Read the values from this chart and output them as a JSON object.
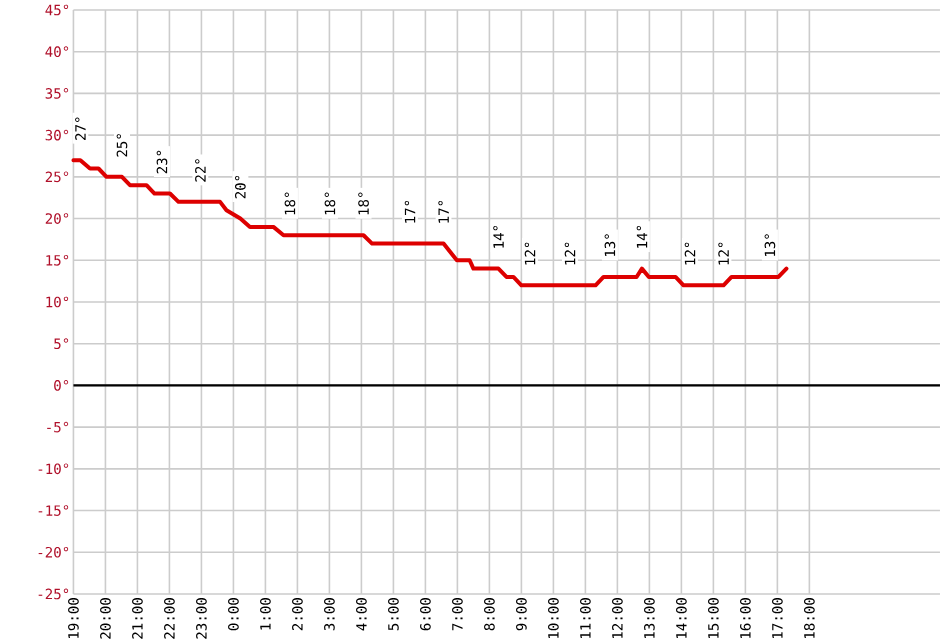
{
  "chart_data": {
    "type": "line",
    "xlim": [
      "2000-01-01T19:00",
      "2000-01-02T22:05"
    ],
    "ylim": [
      -25,
      45
    ],
    "xticks": [
      {
        "value": "2000-01-01T19:00",
        "label": "19:00"
      },
      {
        "value": "2000-01-01T20:00",
        "label": "20:00"
      },
      {
        "value": "2000-01-01T21:00",
        "label": "21:00"
      },
      {
        "value": "2000-01-01T22:00",
        "label": "22:00"
      },
      {
        "value": "2000-01-01T23:00",
        "label": "23:00"
      },
      {
        "value": "2000-01-02T00:00",
        "label": "0:00"
      },
      {
        "value": "2000-01-02T01:00",
        "label": "1:00"
      },
      {
        "value": "2000-01-02T02:00",
        "label": "2:00"
      },
      {
        "value": "2000-01-02T03:00",
        "label": "3:00"
      },
      {
        "value": "2000-01-02T04:00",
        "label": "4:00"
      },
      {
        "value": "2000-01-02T05:00",
        "label": "5:00"
      },
      {
        "value": "2000-01-02T06:00",
        "label": "6:00"
      },
      {
        "value": "2000-01-02T07:00",
        "label": "7:00"
      },
      {
        "value": "2000-01-02T08:00",
        "label": "8:00"
      },
      {
        "value": "2000-01-02T09:00",
        "label": "9:00"
      },
      {
        "value": "2000-01-02T10:00",
        "label": "10:00"
      },
      {
        "value": "2000-01-02T11:00",
        "label": "11:00"
      },
      {
        "value": "2000-01-02T12:00",
        "label": "12:00"
      },
      {
        "value": "2000-01-02T13:00",
        "label": "13:00"
      },
      {
        "value": "2000-01-02T14:00",
        "label": "14:00"
      },
      {
        "value": "2000-01-02T15:00",
        "label": "15:00"
      },
      {
        "value": "2000-01-02T16:00",
        "label": "16:00"
      },
      {
        "value": "2000-01-02T17:00",
        "label": "17:00"
      },
      {
        "value": "2000-01-02T18:00",
        "label": "18:00"
      }
    ],
    "yticks": [
      {
        "value": 45,
        "label": "45°"
      },
      {
        "value": 40,
        "label": "40°"
      },
      {
        "value": 35,
        "label": "35°"
      },
      {
        "value": 30,
        "label": "30°"
      },
      {
        "value": 25,
        "label": "25°"
      },
      {
        "value": 20,
        "label": "20°"
      },
      {
        "value": 15,
        "label": "15°"
      },
      {
        "value": 10,
        "label": "10°"
      },
      {
        "value": 5,
        "label": "5°"
      },
      {
        "value": 0,
        "label": "0°"
      },
      {
        "value": -5,
        "label": "-5°"
      },
      {
        "value": -10,
        "label": "-10°"
      },
      {
        "value": -15,
        "label": "-15°"
      },
      {
        "value": -20,
        "label": "-20°"
      },
      {
        "value": -25,
        "label": "-25°"
      }
    ],
    "grid": true,
    "marker": "none",
    "line_style": "solid",
    "ref_lines": [
      {
        "axis": "y",
        "value": 0,
        "color": "#000000"
      }
    ],
    "series": [
      {
        "color": "#dd0000",
        "x": [
          "2000-01-01T19:00",
          "2000-01-01T19:13",
          "2000-01-01T19:31",
          "2000-01-01T19:47",
          "2000-01-01T20:02",
          "2000-01-01T20:31",
          "2000-01-01T20:46",
          "2000-01-01T21:17",
          "2000-01-01T21:32",
          "2000-01-01T21:46",
          "2000-01-01T22:01",
          "2000-01-01T22:17",
          "2000-01-01T22:58",
          "2000-01-01T23:35",
          "2000-01-01T23:47",
          "2000-01-02T00:13",
          "2000-01-02T00:31",
          "2000-01-02T01:15",
          "2000-01-02T01:34",
          "2000-01-02T01:46",
          "2000-01-02T03:01",
          "2000-01-02T04:04",
          "2000-01-02T04:20",
          "2000-01-02T05:31",
          "2000-01-02T06:34",
          "2000-01-02T06:59",
          "2000-01-02T07:23",
          "2000-01-02T07:30",
          "2000-01-02T08:01",
          "2000-01-02T08:17",
          "2000-01-02T08:32",
          "2000-01-02T08:45",
          "2000-01-02T09:00",
          "2000-01-02T09:16",
          "2000-01-02T10:31",
          "2000-01-02T11:19",
          "2000-01-02T11:34",
          "2000-01-02T11:46",
          "2000-01-02T12:36",
          "2000-01-02T12:46",
          "2000-01-02T12:59",
          "2000-01-02T13:49",
          "2000-01-02T14:04",
          "2000-01-02T14:16",
          "2000-01-02T15:19",
          "2000-01-02T15:34",
          "2000-01-02T16:46",
          "2000-01-02T17:02",
          "2000-01-02T17:17"
        ],
        "values": [
          27,
          27,
          26,
          26,
          25,
          25,
          24,
          24,
          23,
          23,
          23,
          22,
          22,
          22,
          21,
          20,
          19,
          19,
          18,
          18,
          18,
          18,
          17,
          17,
          17,
          15,
          15,
          14,
          14,
          14,
          13,
          13,
          12,
          12,
          12,
          12,
          13,
          13,
          13,
          14,
          13,
          13,
          12,
          12,
          12,
          13,
          13,
          13,
          14
        ],
        "value_labels": [
          null,
          "27°",
          null,
          null,
          null,
          "25°",
          null,
          null,
          null,
          "23°",
          null,
          null,
          "22°",
          null,
          null,
          "20°",
          null,
          null,
          null,
          "18°",
          "18°",
          "18°",
          null,
          "17°",
          "17°",
          null,
          null,
          null,
          null,
          "14°",
          null,
          null,
          null,
          "12°",
          "12°",
          null,
          null,
          "13°",
          null,
          "14°",
          null,
          null,
          null,
          "12°",
          "12°",
          null,
          "13°",
          null,
          null
        ]
      }
    ]
  }
}
